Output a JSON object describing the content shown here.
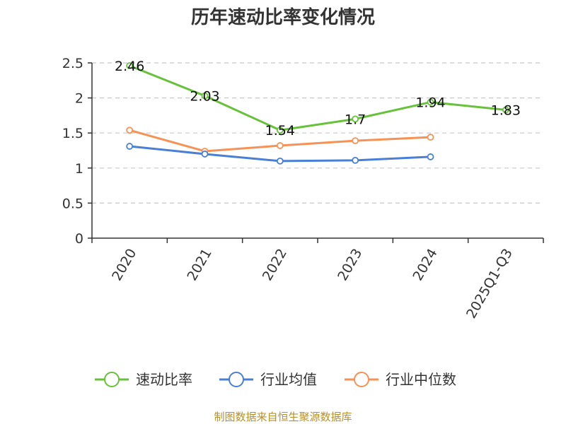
{
  "chart_data": {
    "type": "line",
    "title": "历年速动比率变化情况",
    "categories": [
      "2020",
      "2021",
      "2022",
      "2023",
      "2024",
      "2025Q1-Q3"
    ],
    "ylim": [
      0,
      2.5
    ],
    "yticks": [
      "0",
      "0.5",
      "1",
      "1.5",
      "2",
      "2.5"
    ],
    "grid": true,
    "legend_position": "bottom",
    "series": [
      {
        "name": "速动比率",
        "color": "#67c23a",
        "values": [
          2.46,
          2.03,
          1.54,
          1.7,
          1.94,
          1.83
        ],
        "labels": [
          "2.46",
          "2.03",
          "1.54",
          "1.7",
          "1.94",
          "1.83"
        ]
      },
      {
        "name": "行业均值",
        "color": "#4a7fd6",
        "values": [
          1.31,
          1.2,
          1.1,
          1.11,
          1.16,
          null
        ]
      },
      {
        "name": "行业中位数",
        "color": "#f79256",
        "values": [
          1.54,
          1.24,
          1.32,
          1.39,
          1.44,
          null
        ]
      }
    ]
  },
  "source": "制图数据来自恒生聚源数据库"
}
